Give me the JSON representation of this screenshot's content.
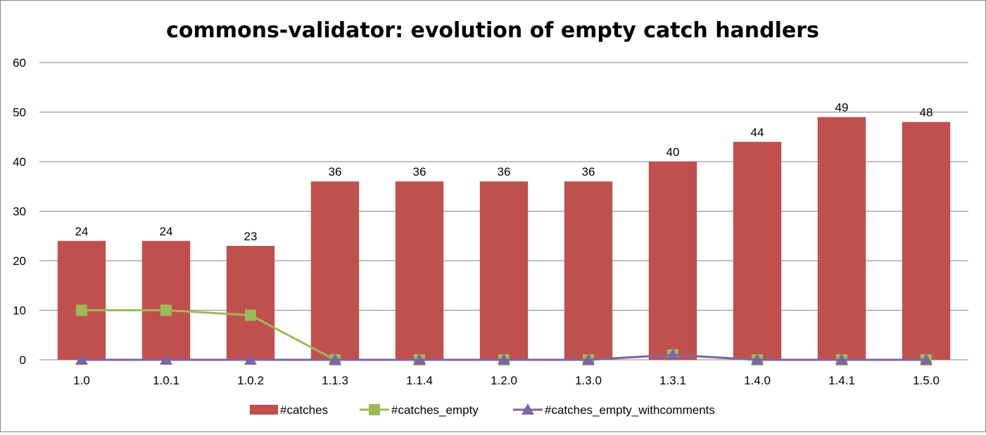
{
  "chart_data": {
    "type": "bar",
    "title": "commons-validator: evolution of empty catch handlers",
    "xlabel": "",
    "ylabel": "",
    "ylim": [
      0,
      60
    ],
    "yticks": [
      0,
      10,
      20,
      30,
      40,
      50,
      60
    ],
    "grid": true,
    "legend_position": "bottom",
    "categories": [
      "1.0",
      "1.0.1",
      "1.0.2",
      "1.1.3",
      "1.1.4",
      "1.2.0",
      "1.3.0",
      "1.3.1",
      "1.4.0",
      "1.4.1",
      "1.5.0"
    ],
    "series": [
      {
        "name": "#catches",
        "kind": "bar",
        "color": "#C0504D",
        "values": [
          24,
          24,
          23,
          36,
          36,
          36,
          36,
          40,
          44,
          49,
          48
        ],
        "data_labels": true
      },
      {
        "name": "#catches_empty",
        "kind": "line",
        "marker": "square",
        "color": "#9BBB59",
        "values": [
          10,
          10,
          9,
          0,
          0,
          0,
          0,
          1,
          0,
          0,
          0
        ]
      },
      {
        "name": "#catches_empty_withcomments",
        "kind": "line",
        "marker": "triangle",
        "color": "#8064A2",
        "values": [
          0,
          0,
          0,
          0,
          0,
          0,
          0,
          1,
          0,
          0,
          0
        ]
      }
    ]
  }
}
